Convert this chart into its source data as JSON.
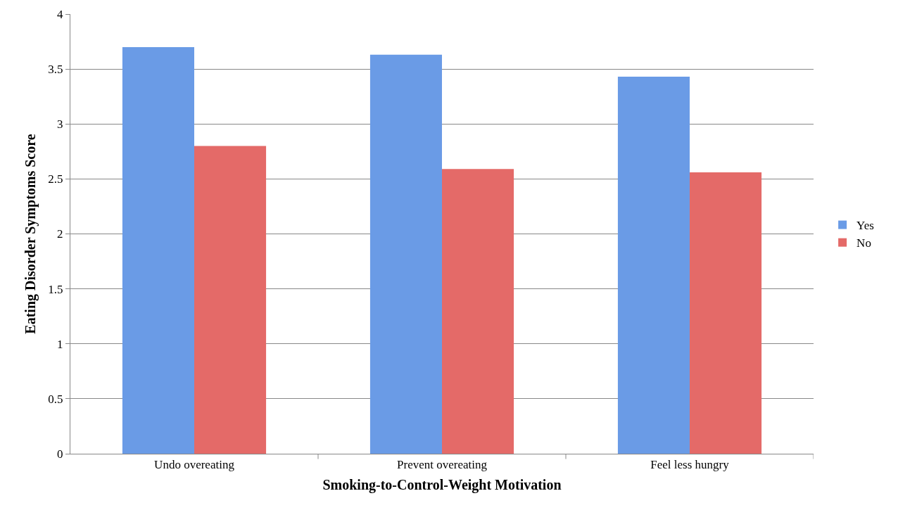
{
  "chart_data": {
    "type": "bar",
    "xlabel": "Smoking-to-Control-Weight Motivation",
    "ylabel": "Eating Disorder Symptoms Score",
    "categories": [
      "Undo overeating",
      "Prevent overeating",
      "Feel less hungry"
    ],
    "series": [
      {
        "name": "Yes",
        "color": "#6a9be6",
        "values": [
          3.7,
          3.63,
          3.43
        ]
      },
      {
        "name": "No",
        "color": "#e46a68",
        "values": [
          2.8,
          2.59,
          2.56
        ]
      }
    ],
    "ylim": [
      0,
      4
    ],
    "yticks": [
      0,
      0.5,
      1,
      1.5,
      2,
      2.5,
      3,
      3.5,
      4
    ],
    "grid": "y",
    "legend": "right"
  }
}
